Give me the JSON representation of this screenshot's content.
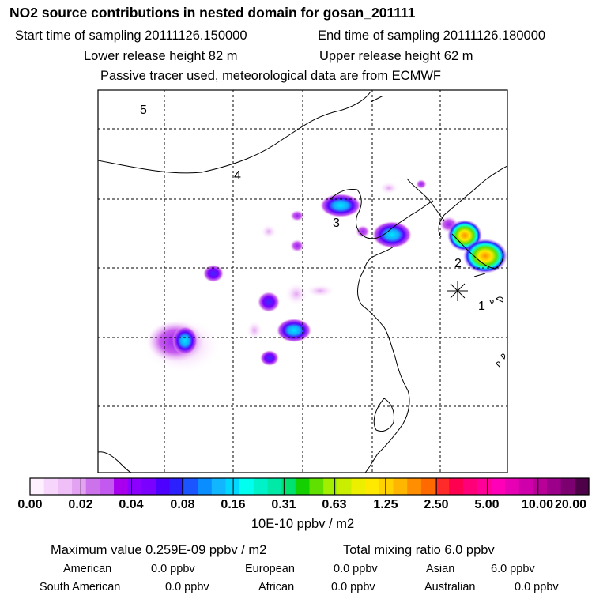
{
  "header": {
    "title": "NO2 source contributions in nested domain for gosan_201111",
    "start_time": "Start time of sampling 20111126.150000",
    "end_time": "End time of sampling 20111126.180000",
    "lower_release": "Lower release height   82 m",
    "upper_release": "Upper release height   62 m",
    "tracer_note": "Passive tracer used, meteorological data are from ECMWF"
  },
  "map": {
    "region_labels": [
      "5",
      "4",
      "3",
      "2",
      "1"
    ]
  },
  "colorbar": {
    "colors": [
      "#fff0ff",
      "#f6d6fb",
      "#efbff7",
      "#e3a3f2",
      "#cc72ea",
      "#c359ee",
      "#a800ee",
      "#8c00ff",
      "#7a00ff",
      "#4e00ff",
      "#2d20ff",
      "#1a55ff",
      "#0a8dff",
      "#12b6ff",
      "#00d8ff",
      "#00ffee",
      "#00f2c9",
      "#00e9a7",
      "#00e26f",
      "#14d000",
      "#60e000",
      "#a3ef00",
      "#c9ee00",
      "#ecf000",
      "#ffe900",
      "#ffd200",
      "#ffb600",
      "#ff8f00",
      "#ff6a00",
      "#ff2a2a",
      "#ff0050",
      "#ff0078",
      "#ff0098",
      "#ff00b8",
      "#e800b4",
      "#cf00ac",
      "#b80098",
      "#9c008a",
      "#7c0070",
      "#4e0048"
    ],
    "tick_labels": [
      "0.00",
      "0.02",
      "0.04",
      "0.08",
      "0.16",
      "0.31",
      "0.63",
      "1.25",
      "2.50",
      "5.00",
      "10.00",
      "20.00"
    ],
    "unit": "10E-10 ppbv / m2"
  },
  "summary": {
    "max_value": "Maximum value  0.259E-09 ppbv / m2",
    "total_mixing": "Total mixing ratio       6.0 ppbv",
    "american_label": "American",
    "american_value": "0.0 ppbv",
    "european_label": "European",
    "european_value": "0.0 ppbv",
    "asian_label": "Asian",
    "asian_value": "6.0 ppbv",
    "south_american_label": "South American",
    "south_american_value": "0.0 ppbv",
    "african_label": "African",
    "african_value": "0.0 ppbv",
    "australian_label": "Australian",
    "australian_value": "0.0 ppbv"
  }
}
